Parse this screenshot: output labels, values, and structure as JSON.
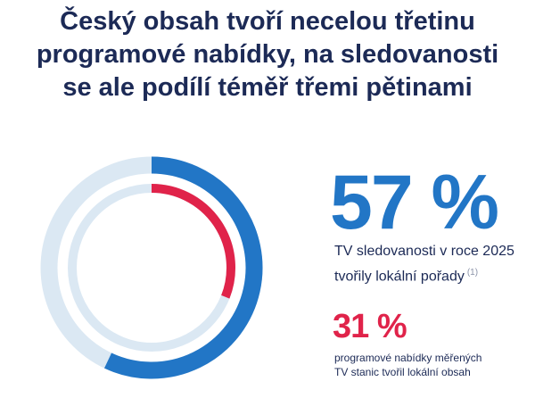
{
  "title": {
    "lines": [
      "Český obsah tvoří necelou třetinu",
      "programové nabídky, na sledovanosti",
      "se ale podílí téměř třemi pětinami"
    ]
  },
  "colors": {
    "title": "#1c2a56",
    "outer_ring": "#2276c6",
    "inner_ring": "#e0234a",
    "track": "#dbe8f3"
  },
  "chart_data": {
    "type": "pie",
    "title": "Český obsah tvoří necelou třetinu programové nabídky, na sledovanosti se ale podílí téměř třemi pětinami",
    "series": [
      {
        "value": 57,
        "label": "57 %",
        "description_lines": [
          "TV sledovanosti v roce 2025",
          "tvořily lokální pořady"
        ],
        "footnote": "(1)",
        "color": "#2276c6",
        "ring": "outer"
      },
      {
        "value": 31,
        "label": "31 %",
        "description_lines": [
          "programové nabídky měřených",
          "TV stanic tvořil lokální obsah"
        ],
        "color": "#e0234a",
        "ring": "inner"
      }
    ],
    "max": 100
  }
}
